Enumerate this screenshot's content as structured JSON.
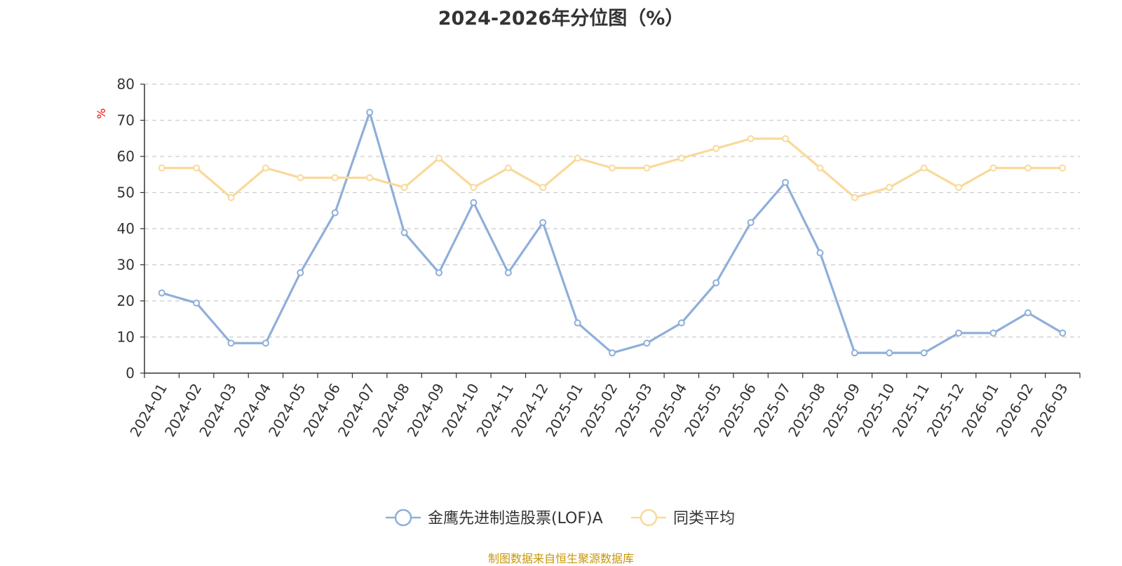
{
  "chart_data": {
    "type": "line",
    "title": "2024-2026年分位图（%）",
    "ylabel": "%",
    "ylim": [
      0,
      80
    ],
    "yticks": [
      0,
      10,
      20,
      30,
      40,
      50,
      60,
      70,
      80
    ],
    "grid": true,
    "legend_position": "bottom",
    "categories": [
      "2024-01",
      "2024-02",
      "2024-03",
      "2024-04",
      "2024-05",
      "2024-06",
      "2024-07",
      "2024-08",
      "2024-09",
      "2024-10",
      "2024-11",
      "2024-12",
      "2025-01",
      "2025-02",
      "2025-03",
      "2025-04",
      "2025-05",
      "2025-06",
      "2025-07",
      "2025-08",
      "2025-09",
      "2025-10",
      "2025-11",
      "2025-12",
      "2026-01",
      "2026-02",
      "2026-03"
    ],
    "series": [
      {
        "name": "金鹰先进制造股票(LOF)A",
        "color": "#8eafd9",
        "values": [
          22.2,
          19.4,
          8.3,
          8.3,
          27.8,
          44.4,
          72.2,
          38.9,
          27.8,
          47.2,
          27.8,
          41.7,
          13.9,
          5.6,
          8.3,
          13.9,
          25.0,
          41.7,
          52.8,
          33.3,
          5.6,
          5.6,
          5.6,
          11.1,
          11.1,
          16.7,
          11.1
        ]
      },
      {
        "name": "同类平均",
        "color": "#f9d99a",
        "values": [
          56.8,
          56.8,
          48.6,
          56.8,
          54.1,
          54.1,
          54.1,
          51.4,
          59.5,
          51.4,
          56.8,
          51.4,
          59.5,
          56.8,
          56.8,
          59.5,
          62.2,
          64.9,
          64.9,
          56.8,
          48.6,
          51.4,
          56.8,
          51.4,
          56.8,
          56.8,
          56.8
        ]
      }
    ]
  },
  "footer": {
    "source": "制图数据来自恒生聚源数据库"
  }
}
